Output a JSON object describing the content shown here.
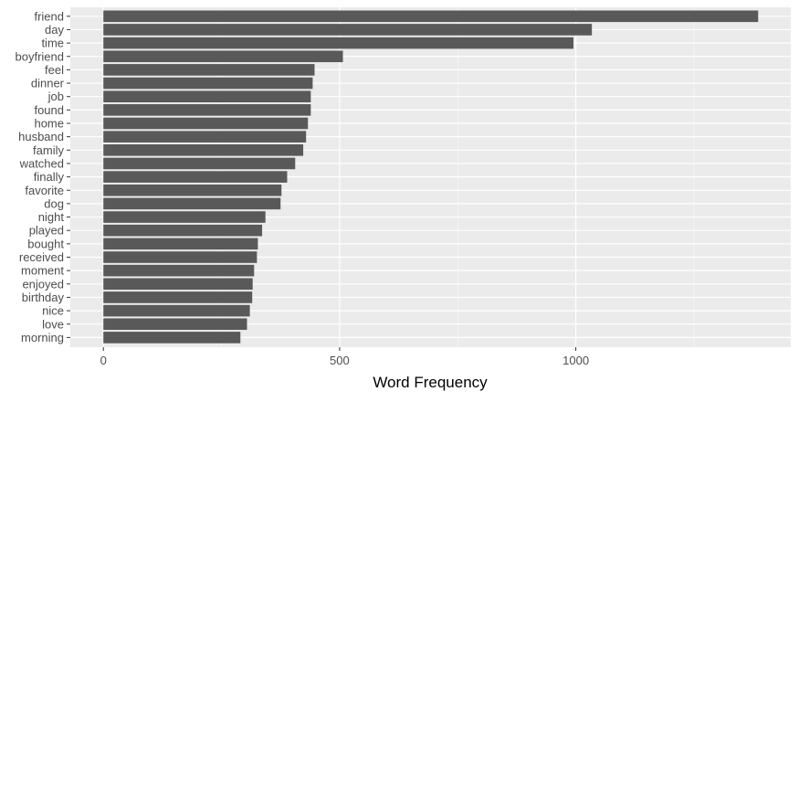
{
  "chart_data": {
    "type": "bar",
    "orientation": "horizontal",
    "categories": [
      "friend",
      "day",
      "time",
      "boyfriend",
      "feel",
      "dinner",
      "job",
      "found",
      "home",
      "husband",
      "family",
      "watched",
      "finally",
      "favorite",
      "dog",
      "night",
      "played",
      "bought",
      "received",
      "moment",
      "enjoyed",
      "birthday",
      "nice",
      "love",
      "morning"
    ],
    "values": [
      1386,
      1034,
      995,
      507,
      447,
      443,
      439,
      439,
      433,
      429,
      423,
      406,
      389,
      377,
      375,
      343,
      336,
      327,
      325,
      319,
      316,
      315,
      310,
      304,
      290
    ],
    "title": "",
    "xlabel": "Word Frequency",
    "ylabel": "",
    "xlim": [
      -70,
      1455
    ],
    "x_ticks": [
      0,
      500,
      1000
    ],
    "x_tick_labels": [
      "0",
      "500",
      "1000"
    ],
    "grid": true,
    "legend": "none",
    "colors": {
      "bar": "#595959",
      "panel_background": "#ebebeb",
      "grid_major": "#ffffff",
      "grid_minor": "#f5f5f5",
      "tick_text": "#4d4d4d",
      "title_text": "#000000"
    }
  }
}
